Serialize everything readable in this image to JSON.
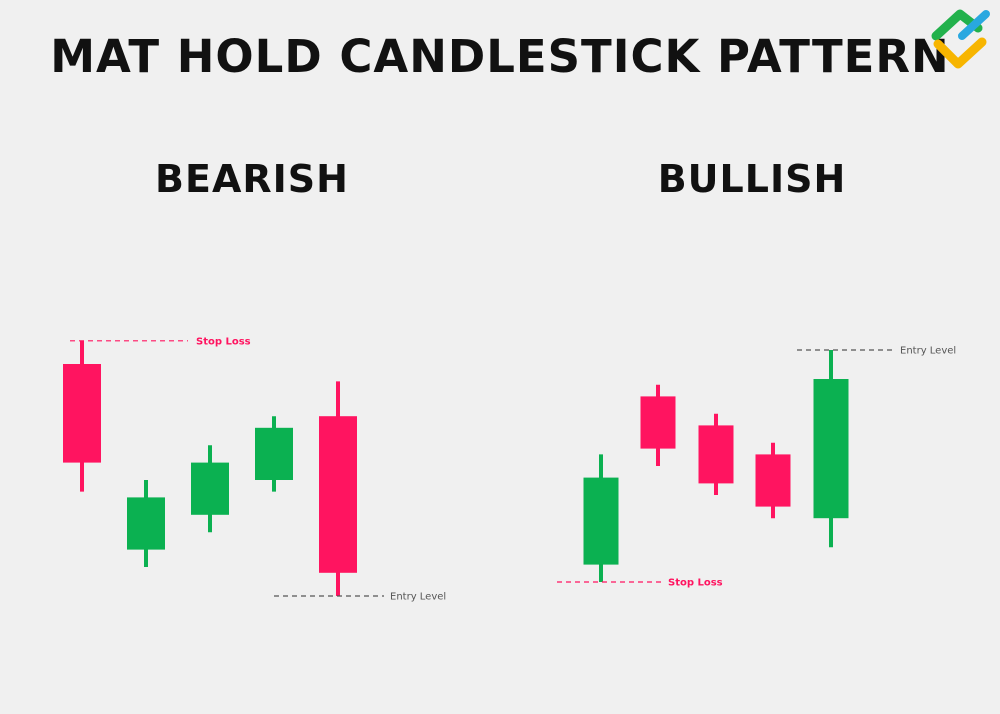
{
  "title": "MAT HOLD CANDLESTICK PATTERN",
  "colors": {
    "bullish": "#0bb151",
    "bearish": "#ff1460",
    "stop_loss": "#ff1460",
    "entry_level": "#555555",
    "text": "#111111",
    "background": "#f0f0f0"
  },
  "logo": {
    "icon": "litefinance-logo-icon",
    "colors": [
      "#22b14c",
      "#f7b500",
      "#29a8e0"
    ]
  },
  "panels": [
    {
      "id": "bearish",
      "title": "BEARISH",
      "candles": [
        {
          "direction": "bearish",
          "open": 96,
          "high": 100,
          "low": 74,
          "close": 79
        },
        {
          "direction": "bullish",
          "open": 64,
          "high": 76,
          "low": 61,
          "close": 73
        },
        {
          "direction": "bullish",
          "open": 70,
          "high": 82,
          "low": 67,
          "close": 79
        },
        {
          "direction": "bullish",
          "open": 76,
          "high": 87,
          "low": 74,
          "close": 85
        },
        {
          "direction": "bearish",
          "open": 87,
          "high": 93,
          "low": 56,
          "close": 60
        }
      ],
      "levels": [
        {
          "type": "stop_loss",
          "label": "Stop Loss",
          "value": 100
        },
        {
          "type": "entry_level",
          "label": "Entry Level",
          "value": 56
        }
      ]
    },
    {
      "id": "bullish",
      "title": "BULLISH",
      "candles": [
        {
          "direction": "bullish",
          "open": 63,
          "high": 82,
          "low": 60,
          "close": 78
        },
        {
          "direction": "bearish",
          "open": 92,
          "high": 94,
          "low": 80,
          "close": 83
        },
        {
          "direction": "bearish",
          "open": 87,
          "high": 89,
          "low": 75,
          "close": 77
        },
        {
          "direction": "bearish",
          "open": 82,
          "high": 84,
          "low": 71,
          "close": 73
        },
        {
          "direction": "bullish",
          "open": 71,
          "high": 100,
          "low": 66,
          "close": 95
        }
      ],
      "levels": [
        {
          "type": "stop_loss",
          "label": "Stop Loss",
          "value": 60
        },
        {
          "type": "entry_level",
          "label": "Entry Level",
          "value": 100
        }
      ]
    }
  ]
}
